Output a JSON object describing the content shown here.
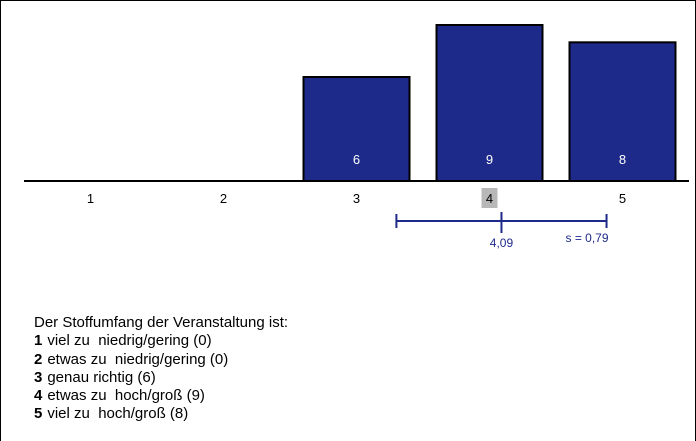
{
  "chart_data": {
    "type": "bar",
    "categories": [
      "1",
      "2",
      "3",
      "4",
      "5"
    ],
    "values": [
      0,
      0,
      6,
      9,
      8
    ],
    "value_labels": [
      "",
      "",
      "6",
      "9",
      "8"
    ],
    "ylim": [
      0,
      9
    ],
    "bar_color": "#1e2a8a",
    "highlight_category": "4",
    "mean": 4.09,
    "sd": 0.79,
    "mean_label": "4,09",
    "sd_label": "s = 0,79",
    "indicator_color": "#1e2a8a"
  },
  "legend": {
    "question": "Der Stoffumfang der Veranstaltung ist:",
    "items": [
      {
        "num": "1",
        "text": "viel zu  niedrig/gering (0)"
      },
      {
        "num": "2",
        "text": "etwas zu  niedrig/gering (0)"
      },
      {
        "num": "3",
        "text": "genau richtig (6)"
      },
      {
        "num": "4",
        "text": "etwas zu  hoch/groß (9)"
      },
      {
        "num": "5",
        "text": "viel zu  hoch/groß (8)"
      }
    ]
  }
}
